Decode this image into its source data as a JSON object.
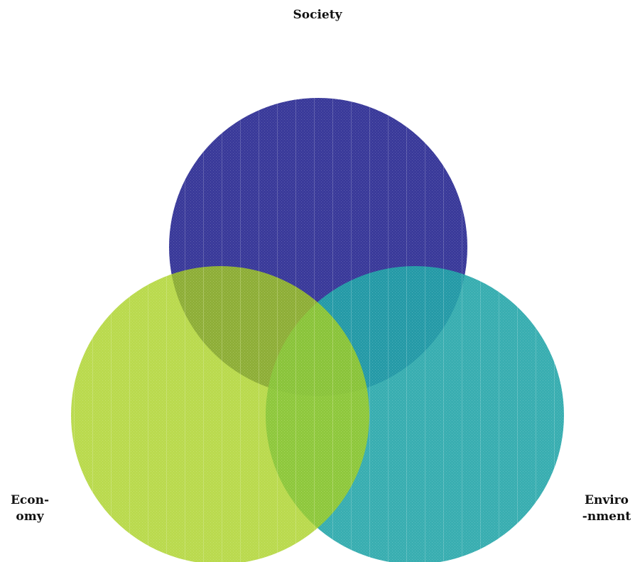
{
  "diagram": {
    "type": "venn-3",
    "circles": [
      {
        "id": "society",
        "color": "#3a3a9a"
      },
      {
        "id": "economy",
        "color": "#a6cf1c"
      },
      {
        "id": "environment",
        "color": "#23a5a8"
      }
    ],
    "labels": {
      "society": {
        "line1": "Society"
      },
      "economy": {
        "line1": "Econ-",
        "line2": "omy"
      },
      "environment": {
        "line1": "Enviro",
        "line2": "-nment"
      }
    }
  }
}
